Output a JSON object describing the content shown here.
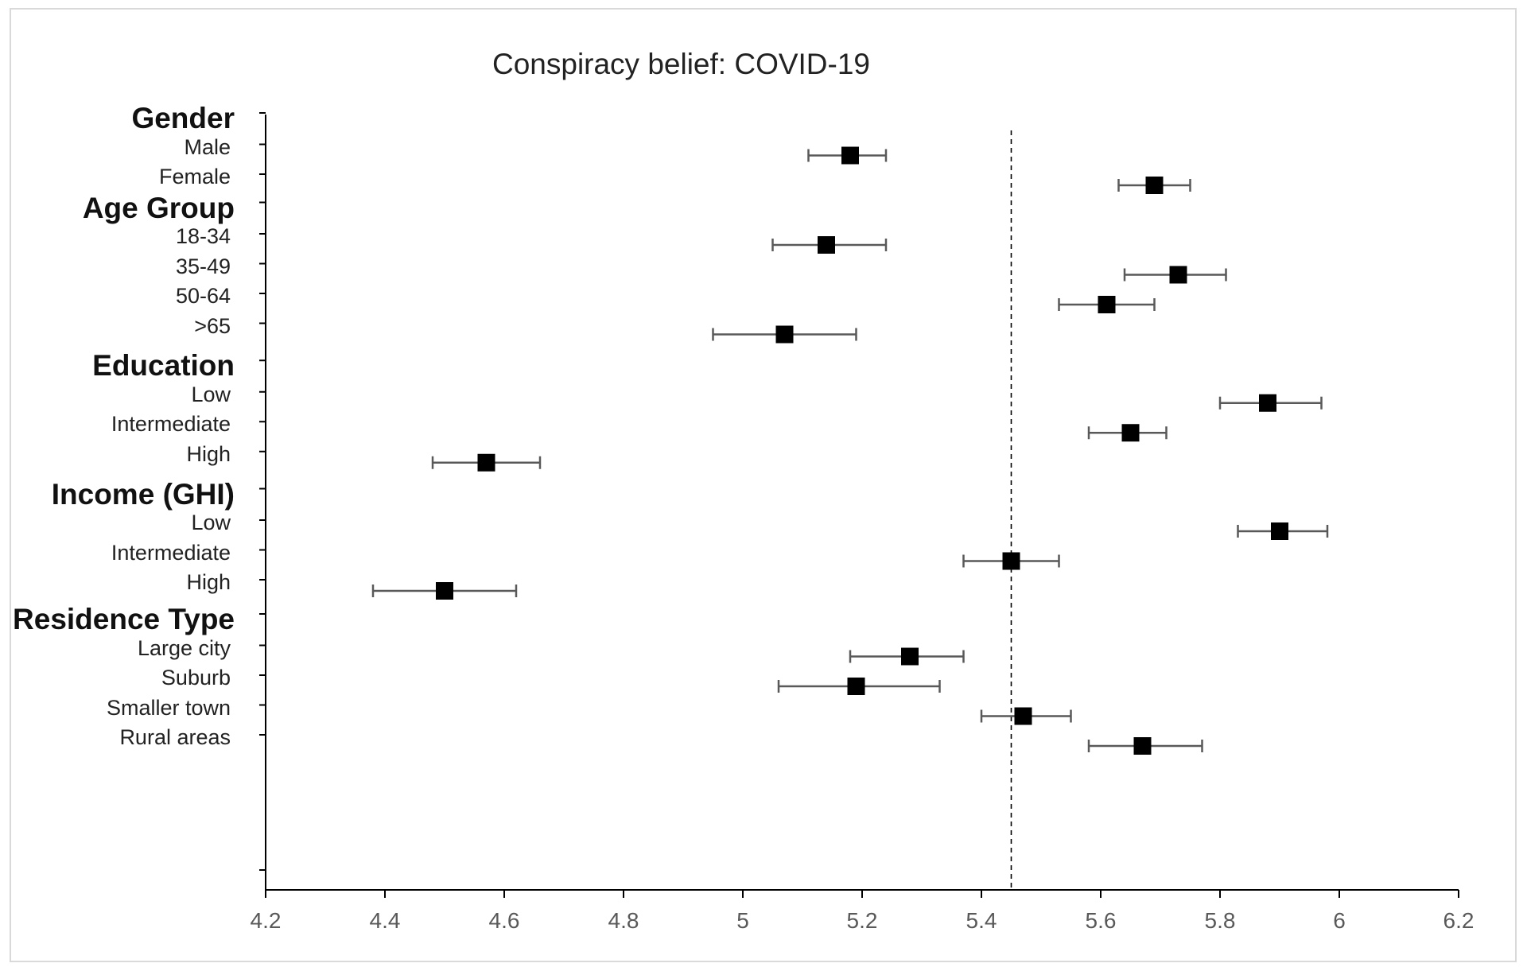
{
  "chart_data": {
    "type": "scatter",
    "title": "Conspiracy belief: COVID-19",
    "xlabel": "",
    "ylabel": "",
    "xlim": [
      4.2,
      6.2
    ],
    "x_ticks": [
      "4.2",
      "4.4",
      "4.6",
      "4.8",
      "5",
      "5.2",
      "5.4",
      "5.6",
      "5.8",
      "6",
      "6.2"
    ],
    "reference_line_x": 5.45,
    "grid": false,
    "legend": "none",
    "marker_color": "#000000",
    "errorbar_color": "#595959",
    "groups": [
      {
        "name": "Gender",
        "items": [
          {
            "label": "Male",
            "value": 5.18,
            "low": 5.11,
            "high": 5.24
          },
          {
            "label": "Female",
            "value": 5.69,
            "low": 5.63,
            "high": 5.75
          }
        ]
      },
      {
        "name": "Age Group",
        "items": [
          {
            "label": "18-34",
            "value": 5.14,
            "low": 5.05,
            "high": 5.24
          },
          {
            "label": "35-49",
            "value": 5.73,
            "low": 5.64,
            "high": 5.81
          },
          {
            "label": "50-64",
            "value": 5.61,
            "low": 5.53,
            "high": 5.69
          },
          {
            "label": ">65",
            "value": 5.07,
            "low": 4.95,
            "high": 5.19
          }
        ]
      },
      {
        "name": "Education",
        "items": [
          {
            "label": "Low",
            "value": 5.88,
            "low": 5.8,
            "high": 5.97
          },
          {
            "label": "Intermediate",
            "value": 5.65,
            "low": 5.58,
            "high": 5.71
          },
          {
            "label": "High",
            "value": 4.57,
            "low": 4.48,
            "high": 4.66
          }
        ]
      },
      {
        "name": "Income (GHI)",
        "items": [
          {
            "label": "Low",
            "value": 5.9,
            "low": 5.83,
            "high": 5.98
          },
          {
            "label": "Intermediate",
            "value": 5.45,
            "low": 5.37,
            "high": 5.53
          },
          {
            "label": "High",
            "value": 4.5,
            "low": 4.38,
            "high": 4.62
          }
        ]
      },
      {
        "name": "Residence Type",
        "items": [
          {
            "label": "Large city",
            "value": 5.28,
            "low": 5.18,
            "high": 5.37
          },
          {
            "label": "Suburb",
            "value": 5.19,
            "low": 5.06,
            "high": 5.33
          },
          {
            "label": "Smaller town",
            "value": 5.47,
            "low": 5.4,
            "high": 5.55
          },
          {
            "label": "Rural areas",
            "value": 5.67,
            "low": 5.58,
            "high": 5.77
          }
        ]
      }
    ]
  }
}
